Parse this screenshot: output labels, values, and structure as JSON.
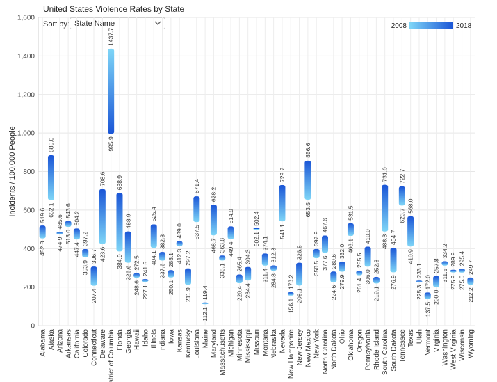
{
  "title": "United States Violence Rates by State",
  "sort": {
    "label": "Sort by:",
    "selected": "State Name"
  },
  "legend": {
    "start": "2008",
    "end": "2018"
  },
  "colors": {
    "start": "#7fd6f7",
    "end": "#1a55d6"
  },
  "chart_data": {
    "type": "bar",
    "title": "United States Violence Rates by State",
    "ylabel": "Incidents / 100,000 People",
    "xlabel": "",
    "ylim": [
      0,
      1600
    ],
    "yticks": [
      "0",
      "200",
      "400",
      "600",
      "800",
      "1,000",
      "1,200",
      "1,400",
      "1,600"
    ],
    "grid": true,
    "legend_position": "top-right",
    "categories": [
      "Alabama",
      "Alaska",
      "Arizona",
      "Arkansas",
      "California",
      "Colorado",
      "Connecticut",
      "Delaware",
      "District of Columbia",
      "Florida",
      "Georgia",
      "Hawaii",
      "Idaho",
      "Illinois",
      "Indiana",
      "Iowa",
      "Kansas",
      "Kentucky",
      "Louisiana",
      "Maine",
      "Maryland",
      "Massachusetts",
      "Michigan",
      "Minnesota",
      "Mississippi",
      "Missouri",
      "Montana",
      "Nebraska",
      "Nevada",
      "New Hampshire",
      "New Jersey",
      "New Mexico",
      "New York",
      "North Carolina",
      "North Dakota",
      "Ohio",
      "Oklahoma",
      "Oregon",
      "Pennsylvania",
      "Rhode Island",
      "South Carolina",
      "South Dakota",
      "Tennessee",
      "Texas",
      "Utah",
      "Vermont",
      "Virginia",
      "Washington",
      "West Virginia",
      "Wisconsin",
      "Wyoming"
    ],
    "category_labels": [
      "Alabama",
      "Alaska",
      "Arizona",
      "Arkansas",
      "California",
      "Colorado",
      "Connecticut",
      "Delaware",
      "strict of Columbia",
      "Florida",
      "Georgia",
      "Hawaii",
      "Idaho",
      "Illinois",
      "Indiana",
      "Iowa",
      "Kansas",
      "Kentucky",
      "Louisiana",
      "Maine",
      "Maryland",
      "Massachusetts",
      "Michigan",
      "Minnesota",
      "Mississippi",
      "Missouri",
      "Montana",
      "Nebraska",
      "Nevada",
      "New Hampshire",
      "New Jersey",
      "New Mexico",
      "New York",
      "North Carolina",
      "North Dakota",
      "Ohio",
      "Oklahoma",
      "Oregon",
      "Pennsylvania",
      "Rhode Island",
      "South Carolina",
      "South Dakota",
      "Tennessee",
      "Texas",
      "Utah",
      "Vermont",
      "Virginia",
      "Washington",
      "West Virginia",
      "Wisconsin",
      "Wyoming"
    ],
    "series": [
      {
        "name": "2008",
        "values": [
          452.8,
          652.1,
          474.9,
          513.0,
          447.4,
          353.9,
          207.4,
          423.6,
          1437.7,
          384.9,
          326.6,
          248.6,
          227.1,
          404.1,
          337.6,
          250.1,
          412.3,
          211.9,
          537.5,
          112.1,
          468.7,
          338.1,
          449.4,
          220.4,
          234.4,
          502.1,
          311.4,
          284.8,
          541.1,
          156.1,
          208.1,
          653.5,
          350.5,
          377.6,
          224.6,
          279.9,
          466.1,
          261.4,
          306.0,
          219.1,
          488.3,
          276.9,
          623.7,
          410.9,
          225.3,
          137.5,
          200.0,
          311.5,
          275.9,
          275.5,
          212.2
        ]
      },
      {
        "name": "2018",
        "values": [
          519.6,
          885.0,
          485.6,
          543.6,
          504.2,
          397.2,
          306.7,
          708.6,
          995.9,
          688.9,
          488.9,
          272.5,
          241.5,
          525.4,
          382.3,
          288.1,
          439.0,
          297.2,
          671.4,
          119.4,
          628.2,
          363.8,
          514.9,
          265.4,
          304.3,
          502.4,
          374.1,
          312.3,
          729.7,
          173.2,
          326.5,
          856.6,
          397.9,
          467.6,
          280.6,
          332.0,
          531.5,
          285.5,
          410.0,
          252.8,
          731.0,
          404.7,
          722.7,
          568.0,
          233.1,
          172.0,
          257.8,
          334.2,
          289.9,
          295.4,
          249.7
        ]
      }
    ]
  }
}
